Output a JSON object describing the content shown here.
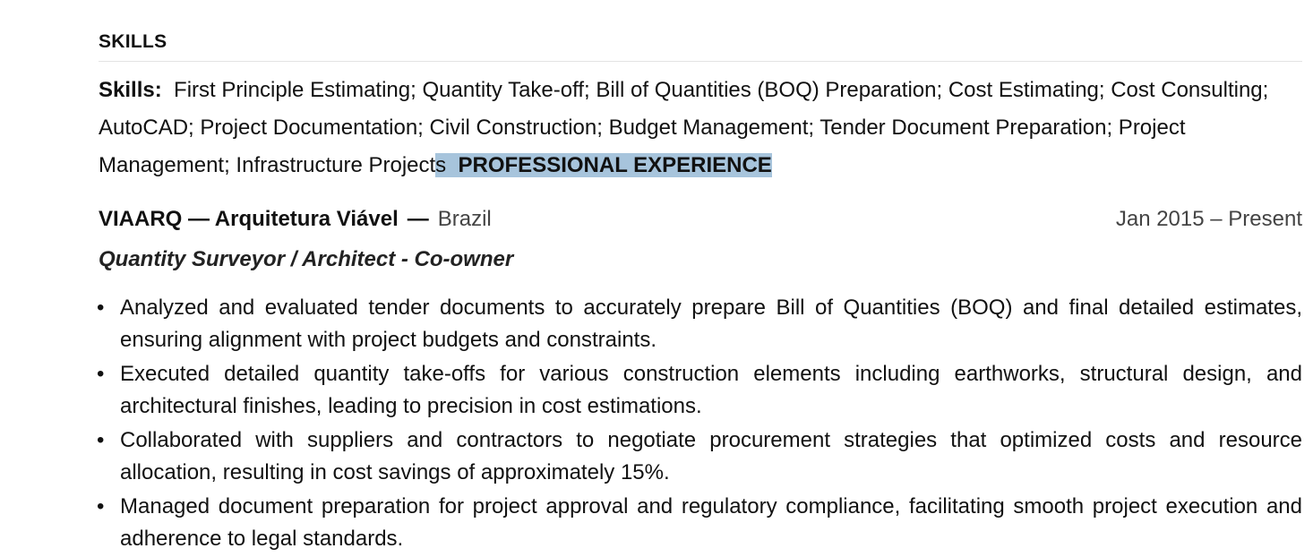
{
  "skills_section": {
    "heading": "SKILLS",
    "label": "Skills:",
    "text_before_highlight": "First Principle Estimating; Quantity Take-off; Bill of Quantities (BOQ) Preparation; Cost Estimating; Cost Consulting; AutoCAD; Project Documentation; Civil Construction; Budget Management; Tender Document Preparation; Project Management; Infrastructure Project",
    "highlighted_char": "s",
    "highlighted_space": "  ",
    "highlighted_heading": "PROFESSIONAL EXPERIENCE"
  },
  "experience": {
    "company": "VIAARQ — Arquitetura Viável",
    "separator": "—",
    "location": "Brazil",
    "dates": "Jan 2015 – Present",
    "title": "Quantity Surveyor / Architect - Co-owner",
    "bullets": [
      "Analyzed and evaluated tender documents to accurately prepare Bill of Quantities (BOQ) and final detailed estimates, ensuring alignment with project budgets and constraints.",
      "Executed detailed quantity take-offs for various construction elements including earthworks, structural design, and architectural finishes, leading to precision in cost estimations.",
      "Collaborated with suppliers and contractors to negotiate procurement strategies that optimized costs and resource allocation, resulting in cost savings of approximately 15%.",
      "Managed document preparation for project approval and regulatory compliance, facilitating smooth project execution and adherence to legal standards."
    ]
  }
}
